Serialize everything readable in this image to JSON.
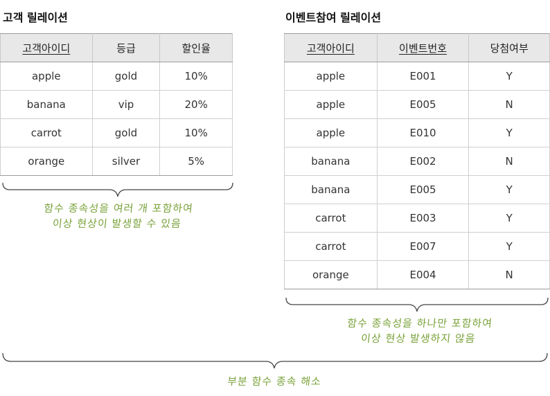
{
  "left": {
    "title": "고객 릴레이션",
    "headers": [
      "고객아이디",
      "등급",
      "할인율"
    ],
    "rows": [
      [
        "apple",
        "gold",
        "10%"
      ],
      [
        "banana",
        "vip",
        "20%"
      ],
      [
        "carrot",
        "gold",
        "10%"
      ],
      [
        "orange",
        "silver",
        "5%"
      ]
    ],
    "note_line1": "함수 종속성을 여러 개 포함하여",
    "note_line2": "이상 현상이 발생할 수 있음"
  },
  "right": {
    "title": "이벤트참여 릴레이션",
    "headers": [
      "고객아이디",
      "이벤트번호",
      "당첨여부"
    ],
    "rows": [
      [
        "apple",
        "E001",
        "Y"
      ],
      [
        "apple",
        "E005",
        "N"
      ],
      [
        "apple",
        "E010",
        "Y"
      ],
      [
        "banana",
        "E002",
        "N"
      ],
      [
        "banana",
        "E005",
        "Y"
      ],
      [
        "carrot",
        "E003",
        "Y"
      ],
      [
        "carrot",
        "E007",
        "Y"
      ],
      [
        "orange",
        "E004",
        "N"
      ]
    ],
    "note_line1": "함수 종속성을 하나만 포함하여",
    "note_line2": "이상 현상 발생하지 않음"
  },
  "bottom_note": "부분 함수 종속 해소",
  "colors": {
    "note": "#7aa23a",
    "header_bg": "#e8e8e8",
    "brace": "#444444"
  }
}
